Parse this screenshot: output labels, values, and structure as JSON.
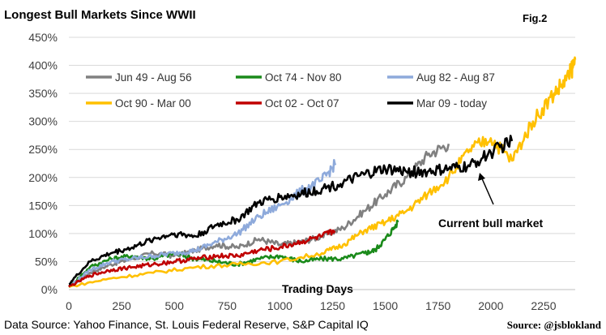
{
  "chart_data": {
    "type": "line",
    "title": "Longest Bull Markets Since WWII",
    "fig_label": "Fig.2",
    "xlabel": "Trading Days",
    "ylabel": "",
    "xlim": [
      0,
      2400
    ],
    "ylim": [
      0,
      450
    ],
    "x_ticks": [
      0,
      250,
      500,
      750,
      1000,
      1250,
      1500,
      1750,
      2000,
      2250
    ],
    "x_tick_labels": [
      "0",
      "250",
      "500",
      "750",
      "1000",
      "1250",
      "1500",
      "1750",
      "2000",
      "2250"
    ],
    "y_ticks": [
      0,
      50,
      100,
      150,
      200,
      250,
      300,
      350,
      400,
      450
    ],
    "y_tick_labels": [
      "0%",
      "50%",
      "100%",
      "150%",
      "200%",
      "250%",
      "300%",
      "350%",
      "400%",
      "450%"
    ],
    "grid": "horizontal",
    "legend_position": "top-left",
    "series": [
      {
        "name": "Jun 49 - Aug 56",
        "color": "#808080",
        "x": [
          0,
          100,
          200,
          300,
          400,
          500,
          600,
          700,
          800,
          900,
          1000,
          1100,
          1200,
          1300,
          1400,
          1500,
          1600,
          1700,
          1800
        ],
        "y": [
          5,
          30,
          45,
          55,
          65,
          60,
          70,
          80,
          75,
          90,
          80,
          85,
          95,
          110,
          140,
          170,
          200,
          240,
          260
        ]
      },
      {
        "name": "Oct 74 - Nov 80",
        "color": "#1a8a1a",
        "x": [
          0,
          100,
          200,
          300,
          400,
          500,
          600,
          700,
          800,
          900,
          1000,
          1100,
          1200,
          1300,
          1400,
          1450,
          1500,
          1560
        ],
        "y": [
          5,
          40,
          55,
          60,
          55,
          65,
          55,
          50,
          45,
          55,
          60,
          50,
          55,
          55,
          65,
          70,
          90,
          120
        ]
      },
      {
        "name": "Aug 82 - Aug 87",
        "color": "#8eaadb",
        "x": [
          0,
          100,
          200,
          300,
          400,
          500,
          600,
          700,
          800,
          900,
          1000,
          1100,
          1200,
          1265
        ],
        "y": [
          5,
          35,
          50,
          55,
          60,
          65,
          70,
          85,
          100,
          130,
          150,
          175,
          195,
          225
        ]
      },
      {
        "name": "Oct 90 - Mar 00",
        "color": "#ffc000",
        "x": [
          0,
          200,
          400,
          600,
          800,
          1000,
          1200,
          1300,
          1400,
          1500,
          1600,
          1700,
          1800,
          1900,
          2000,
          2100,
          2200,
          2300,
          2370,
          2400
        ],
        "y": [
          5,
          20,
          30,
          40,
          45,
          50,
          65,
          80,
          105,
          120,
          140,
          170,
          200,
          250,
          270,
          230,
          300,
          350,
          380,
          410
        ]
      },
      {
        "name": "Oct 02 - Oct 07",
        "color": "#c00000",
        "x": [
          0,
          100,
          200,
          300,
          400,
          500,
          600,
          700,
          800,
          900,
          1000,
          1100,
          1200,
          1260
        ],
        "y": [
          5,
          25,
          35,
          40,
          45,
          50,
          55,
          60,
          60,
          70,
          75,
          85,
          95,
          105
        ]
      },
      {
        "name": "Mar 09 - today",
        "color": "#000000",
        "x": [
          0,
          100,
          200,
          300,
          400,
          500,
          600,
          700,
          800,
          900,
          1000,
          1100,
          1200,
          1300,
          1400,
          1500,
          1600,
          1700,
          1800,
          1900,
          2000,
          2100
        ],
        "y": [
          10,
          50,
          65,
          75,
          90,
          100,
          95,
          115,
          125,
          155,
          165,
          170,
          180,
          190,
          205,
          215,
          210,
          210,
          215,
          220,
          245,
          265
        ]
      }
    ],
    "annotation": {
      "text": "Current bull market",
      "target_x": 1960,
      "target_y": 205
    }
  },
  "footer": {
    "source_left": "Data Source: Yahoo Finance, St. Louis Federal Reserve, S&P Capital IQ",
    "source_right": "Source: @jsblokland"
  }
}
